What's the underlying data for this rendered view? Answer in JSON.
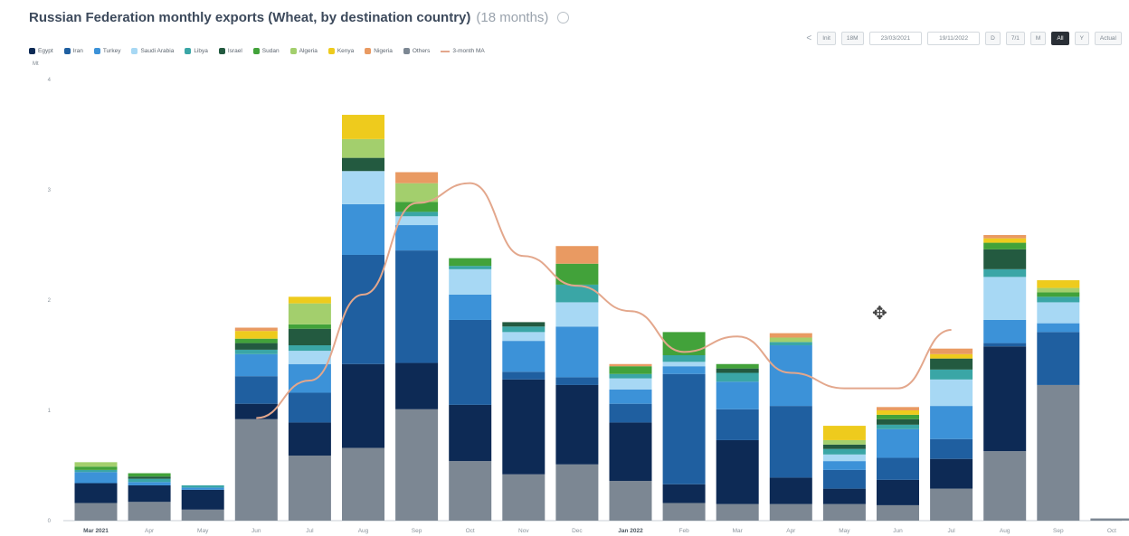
{
  "header": {
    "title": "Russian Federation monthly exports (Wheat, by destination country)",
    "subtitle": "(18 months)"
  },
  "toolbar": {
    "prev_label": "<",
    "buttons": [
      "Init",
      "18M"
    ],
    "date_from": "23/03/2021",
    "date_to": "19/11/2022",
    "periods": [
      "D",
      "7/1",
      "M",
      "All",
      "Y"
    ],
    "active_period": "All",
    "action_label": "Actual"
  },
  "unit_label": "Mt",
  "colors": {
    "Egypt": "#0d2a55",
    "Iran": "#1f5fa0",
    "Turkey": "#3c92d8",
    "Saudi Arabia": "#a7d8f4",
    "Libya": "#3aa6a6",
    "Israel": "#235a40",
    "Sudan": "#42a23a",
    "Algeria": "#a3cf6d",
    "Kenya": "#eecb1d",
    "Nigeria": "#e99a62",
    "Others": "#7c8793",
    "3-month MA": "#e3a78c"
  },
  "chart_data": {
    "type": "bar",
    "stacked": true,
    "title": "Russian Federation monthly exports (Wheat, by destination country)",
    "ylabel": "Mt",
    "ylim": [
      0,
      4
    ],
    "yticks": [
      0,
      1,
      2,
      3,
      4
    ],
    "grid": false,
    "legend_position": "top-left",
    "categories": [
      "Mar 2021",
      "Apr",
      "May",
      "Jun",
      "Jul",
      "Aug",
      "Sep",
      "Oct",
      "Nov",
      "Dec",
      "Jan 2022",
      "Feb",
      "Mar",
      "Apr",
      "May",
      "Jun",
      "Jul",
      "Aug",
      "Sep",
      "Oct"
    ],
    "series": [
      {
        "name": "Others",
        "values": [
          0.16,
          0.17,
          0.1,
          0.92,
          0.59,
          0.66,
          1.01,
          0.54,
          0.42,
          0.51,
          0.36,
          0.16,
          0.15,
          0.15,
          0.15,
          0.14,
          0.29,
          0.63,
          1.23,
          0.02
        ]
      },
      {
        "name": "Egypt",
        "values": [
          0.18,
          0.15,
          0.18,
          0.14,
          0.3,
          0.76,
          0.42,
          0.51,
          0.86,
          0.72,
          0.53,
          0.17,
          0.58,
          0.24,
          0.14,
          0.23,
          0.27,
          0.95,
          0.0,
          0.0
        ]
      },
      {
        "name": "Iran",
        "values": [
          0.0,
          0.0,
          0.0,
          0.25,
          0.27,
          0.99,
          1.02,
          0.77,
          0.07,
          0.07,
          0.17,
          1.0,
          0.28,
          0.65,
          0.17,
          0.2,
          0.18,
          0.03,
          0.48,
          0.0
        ]
      },
      {
        "name": "Turkey",
        "values": [
          0.1,
          0.03,
          0.02,
          0.2,
          0.26,
          0.46,
          0.23,
          0.23,
          0.28,
          0.46,
          0.13,
          0.07,
          0.25,
          0.55,
          0.08,
          0.26,
          0.3,
          0.21,
          0.08,
          0.0
        ]
      },
      {
        "name": "Saudi Arabia",
        "values": [
          0.0,
          0.0,
          0.0,
          0.0,
          0.12,
          0.3,
          0.08,
          0.23,
          0.08,
          0.22,
          0.1,
          0.04,
          0.0,
          0.0,
          0.06,
          0.0,
          0.24,
          0.39,
          0.19,
          0.0
        ]
      },
      {
        "name": "Libya",
        "values": [
          0.02,
          0.03,
          0.02,
          0.04,
          0.05,
          0.0,
          0.04,
          0.03,
          0.05,
          0.16,
          0.04,
          0.06,
          0.08,
          0.03,
          0.05,
          0.04,
          0.09,
          0.07,
          0.05,
          0.0
        ]
      },
      {
        "name": "Israel",
        "values": [
          0.0,
          0.02,
          0.0,
          0.06,
          0.15,
          0.12,
          0.0,
          0.0,
          0.04,
          0.0,
          0.0,
          0.0,
          0.04,
          0.0,
          0.04,
          0.05,
          0.1,
          0.18,
          0.0,
          0.0
        ]
      },
      {
        "name": "Sudan",
        "values": [
          0.03,
          0.03,
          0.0,
          0.04,
          0.04,
          0.0,
          0.09,
          0.07,
          0.0,
          0.19,
          0.07,
          0.21,
          0.04,
          0.0,
          0.0,
          0.04,
          0.0,
          0.06,
          0.04,
          0.0
        ]
      },
      {
        "name": "Algeria",
        "values": [
          0.04,
          0.0,
          0.0,
          0.0,
          0.19,
          0.17,
          0.17,
          0.0,
          0.0,
          0.0,
          0.0,
          0.0,
          0.0,
          0.04,
          0.04,
          0.0,
          0.0,
          0.0,
          0.04,
          0.0
        ]
      },
      {
        "name": "Kenya",
        "values": [
          0.0,
          0.0,
          0.0,
          0.07,
          0.06,
          0.22,
          0.0,
          0.0,
          0.0,
          0.0,
          0.0,
          0.0,
          0.0,
          0.0,
          0.13,
          0.04,
          0.04,
          0.04,
          0.07,
          0.0
        ]
      },
      {
        "name": "Nigeria",
        "values": [
          0.0,
          0.0,
          0.0,
          0.03,
          0.0,
          0.0,
          0.1,
          0.0,
          0.0,
          0.16,
          0.02,
          0.0,
          0.0,
          0.04,
          0.0,
          0.03,
          0.05,
          0.03,
          0.0,
          0.0
        ]
      }
    ],
    "line": {
      "name": "3-month MA",
      "x_start_index": 3,
      "values": [
        0.93,
        1.27,
        2.05,
        2.88,
        3.06,
        2.4,
        2.13,
        1.9,
        1.53,
        1.67,
        1.34,
        1.2,
        1.2,
        1.73
      ]
    }
  }
}
